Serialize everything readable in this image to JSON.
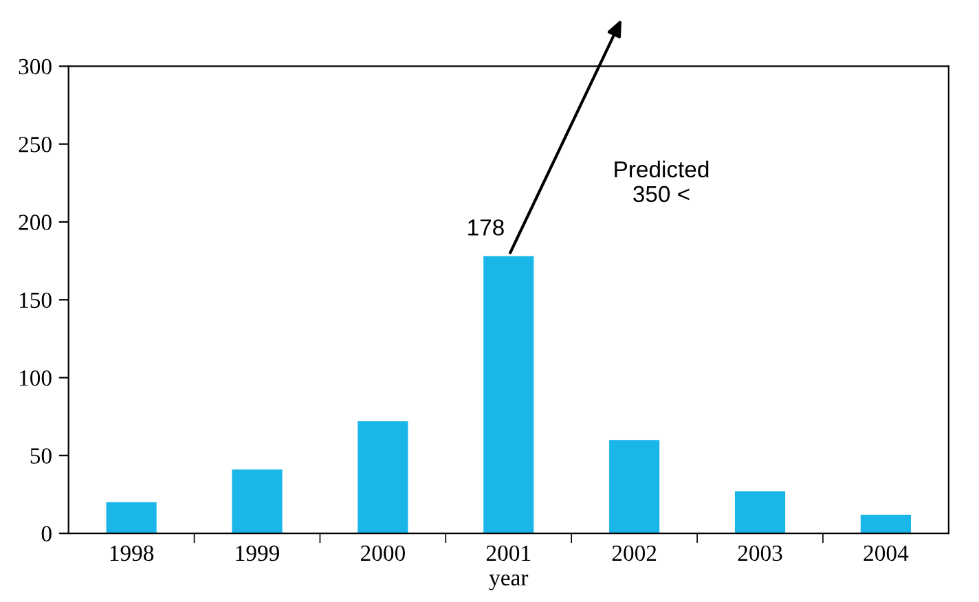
{
  "chart_data": {
    "type": "bar",
    "categories": [
      "1998",
      "1999",
      "2000",
      "2001",
      "2002",
      "2003",
      "2004"
    ],
    "values": [
      20,
      41,
      72,
      178,
      60,
      27,
      12
    ],
    "value_labels": [
      null,
      null,
      null,
      "178",
      null,
      null,
      null
    ],
    "color": "#1ab6e8",
    "xlabel": "year",
    "ylim": [
      0,
      300
    ],
    "yticks": [
      0,
      50,
      100,
      150,
      200,
      250,
      300
    ],
    "annotations": [
      "Predicted\n350 <"
    ],
    "grid": false,
    "legend": false
  }
}
